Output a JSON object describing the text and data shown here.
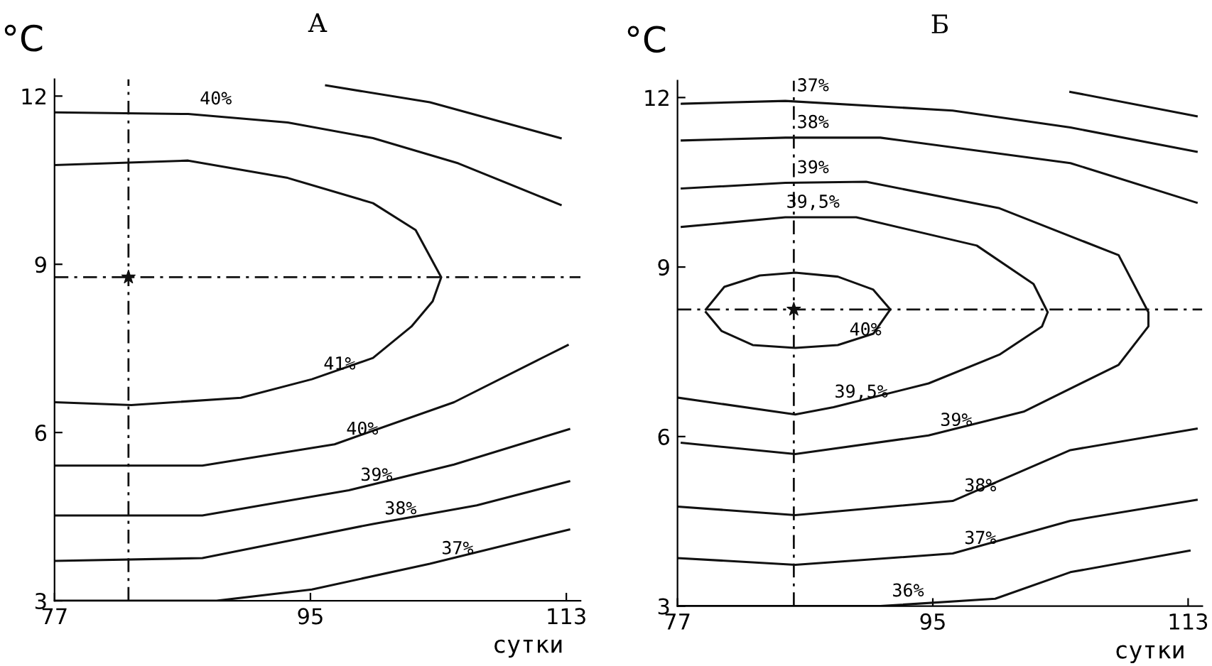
{
  "chart_data": [
    {
      "type": "line",
      "title": "А",
      "xlabel": "сутки",
      "ylabel": "°C",
      "xlim": [
        77,
        114
      ],
      "ylim": [
        3,
        12.3
      ],
      "xticks": [
        77,
        95,
        113
      ],
      "yticks": [
        3,
        6,
        9,
        12
      ],
      "grid": false,
      "legend": false,
      "marker": "none",
      "line_style": "solid",
      "series": [
        {
          "color": "#111111",
          "x": [
            77,
            86.4,
            93.4,
            99.4,
            105.4,
            112.6
          ],
          "values": [
            11.71,
            11.68,
            11.53,
            11.25,
            10.8,
            10.06
          ]
        },
        {
          "color": "#111111",
          "x": [
            96.1,
            103.4,
            112.6
          ],
          "values": [
            12.19,
            11.89,
            11.25
          ]
        },
        {
          "color": "#111111",
          "x": [
            77,
            86.4,
            93.4,
            99.4,
            102.4,
            104.2,
            103.6,
            102.1,
            99.4,
            95.1,
            90.1,
            82.4,
            77.1
          ],
          "values": [
            10.77,
            10.85,
            10.54,
            10.09,
            9.61,
            8.77,
            8.34,
            7.89,
            7.33,
            6.95,
            6.62,
            6.49,
            6.54
          ]
        },
        {
          "color": "#111111",
          "x": [
            77,
            87.4,
            96.7,
            105.1,
            113.1
          ],
          "values": [
            5.41,
            5.41,
            5.79,
            6.54,
            7.56
          ]
        },
        {
          "color": "#111111",
          "x": [
            77,
            87.4,
            97.7,
            105.1,
            113.2
          ],
          "values": [
            4.52,
            4.52,
            4.97,
            5.43,
            6.06
          ]
        },
        {
          "color": "#111111",
          "x": [
            77,
            87.4,
            99.4,
            106.7,
            113.2
          ],
          "values": [
            3.71,
            3.76,
            4.37,
            4.7,
            5.13
          ]
        },
        {
          "color": "#111111",
          "x": [
            77,
            88.4,
            95.1,
            103.4,
            113.2
          ],
          "values": [
            3.0,
            3.0,
            3.2,
            3.66,
            4.27
          ]
        },
        {
          "type": "scatter",
          "marker": "star",
          "color": "#111111",
          "x": [
            82.2
          ],
          "values": [
            8.77
          ]
        }
      ],
      "ref_lines": [
        {
          "axis": "x",
          "value": 82.2,
          "line_style": "dashed",
          "color": "#111111"
        },
        {
          "axis": "y",
          "value": 8.77,
          "line_style": "dashed",
          "color": "#111111"
        }
      ],
      "annotations": [
        {
          "text": "40%",
          "x": 86.4,
          "y": 11.68
        },
        {
          "text": "41%",
          "x": 95.1,
          "y": 6.95
        },
        {
          "text": "40%",
          "x": 96.7,
          "y": 5.79
        },
        {
          "text": "39%",
          "x": 97.7,
          "y": 4.97
        },
        {
          "text": "38%",
          "x": 99.4,
          "y": 4.37
        },
        {
          "text": "37%",
          "x": 103.4,
          "y": 3.66
        }
      ]
    },
    {
      "type": "line",
      "title": "Б",
      "xlabel": "сутки",
      "ylabel": "°C",
      "xlim": [
        77,
        114
      ],
      "ylim": [
        3,
        12.3
      ],
      "xticks": [
        77,
        95,
        113
      ],
      "yticks": [
        3,
        6,
        9,
        12
      ],
      "grid": false,
      "legend": false,
      "marker": "none",
      "line_style": "solid",
      "series": [
        {
          "color": "#111111",
          "x": [
            104.7,
            113.6
          ],
          "values": [
            12.1,
            11.67
          ]
        },
        {
          "color": "#111111",
          "x": [
            77.3,
            84.6,
            96.4,
            104.7,
            113.6
          ],
          "values": [
            11.89,
            11.94,
            11.77,
            11.47,
            11.04
          ]
        },
        {
          "color": "#111111",
          "x": [
            77.3,
            84.6,
            91.3,
            104.7,
            113.6
          ],
          "values": [
            11.24,
            11.29,
            11.29,
            10.84,
            10.14
          ]
        },
        {
          "color": "#111111",
          "x": [
            77.3,
            84.6,
            90.3,
            99.7,
            108.1,
            110.2,
            110.2,
            108.1,
            101.4,
            94.7,
            85.3,
            77.3
          ],
          "values": [
            10.39,
            10.49,
            10.51,
            10.04,
            9.21,
            8.2,
            7.95,
            7.27,
            6.44,
            6.02,
            5.69,
            5.89
          ]
        },
        {
          "color": "#111111",
          "x": [
            77.3,
            84.6,
            89.6,
            98.1,
            102.1,
            103.1,
            102.7,
            99.7,
            94.7,
            88.0,
            85.3,
            77.0
          ],
          "values": [
            9.71,
            9.88,
            9.88,
            9.38,
            8.7,
            8.2,
            7.95,
            7.45,
            6.94,
            6.52,
            6.39,
            6.69
          ]
        },
        {
          "color": "#111111",
          "x": [
            79.0,
            80.3,
            82.8,
            85.3,
            88.3,
            90.8,
            92.0,
            90.8,
            88.3,
            85.3,
            82.3,
            80.1,
            79.0
          ],
          "values": [
            8.25,
            8.65,
            8.85,
            8.9,
            8.83,
            8.6,
            8.25,
            7.82,
            7.62,
            7.57,
            7.62,
            7.87,
            8.2
          ]
        },
        {
          "color": "#111111",
          "x": [
            77.0,
            85.3,
            96.4,
            104.7,
            113.6
          ],
          "values": [
            4.76,
            4.61,
            4.86,
            5.76,
            6.14
          ]
        },
        {
          "color": "#111111",
          "x": [
            77.0,
            85.3,
            96.4,
            104.7,
            113.6
          ],
          "values": [
            3.85,
            3.73,
            3.93,
            4.51,
            4.88
          ]
        },
        {
          "color": "#111111",
          "x": [
            77.0,
            91.3,
            99.4,
            104.7,
            113.1
          ],
          "values": [
            3.0,
            3.0,
            3.13,
            3.6,
            3.98
          ]
        },
        {
          "type": "scatter",
          "marker": "star",
          "color": "#111111",
          "x": [
            85.2
          ],
          "values": [
            8.25
          ]
        }
      ],
      "ref_lines": [
        {
          "axis": "x",
          "value": 85.2,
          "line_style": "dashed",
          "color": "#111111"
        },
        {
          "axis": "y",
          "value": 8.25,
          "line_style": "dashed",
          "color": "#111111"
        }
      ],
      "annotations": [
        {
          "text": "37%",
          "x": 84.6,
          "y": 11.94
        },
        {
          "text": "38%",
          "x": 84.6,
          "y": 11.29
        },
        {
          "text": "39%",
          "x": 84.6,
          "y": 10.49
        },
        {
          "text": "39,5%",
          "x": 84.6,
          "y": 9.88
        },
        {
          "text": "40%",
          "x": 88.3,
          "y": 7.62
        },
        {
          "text": "39,5%",
          "x": 88.0,
          "y": 6.52
        },
        {
          "text": "39%",
          "x": 94.7,
          "y": 6.02
        },
        {
          "text": "38%",
          "x": 96.4,
          "y": 4.86
        },
        {
          "text": "37%",
          "x": 96.4,
          "y": 3.93
        },
        {
          "text": "36%",
          "x": 91.3,
          "y": 3.0
        }
      ]
    }
  ]
}
